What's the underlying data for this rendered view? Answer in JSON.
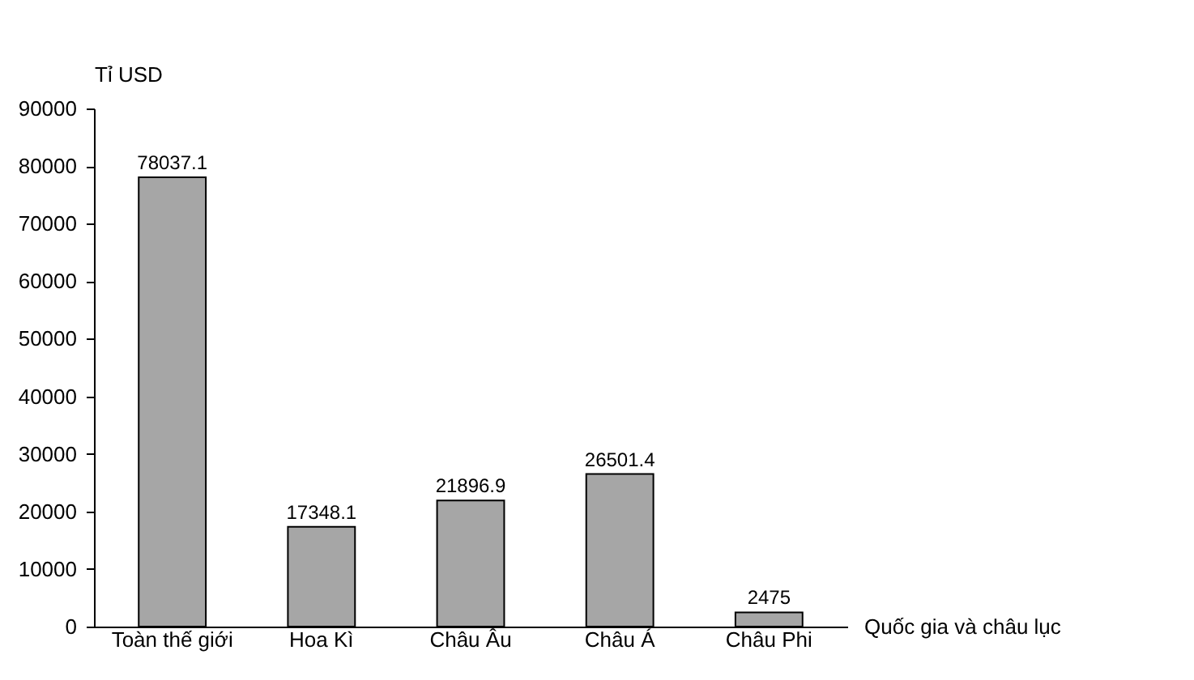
{
  "chart_data": {
    "type": "bar",
    "ylabel": "Tỉ USD",
    "xlabel": "Quốc gia và châu lục",
    "categories": [
      "Toàn thế giới",
      "Hoa Kì",
      "Châu Âu",
      "Châu Á",
      "Châu Phi"
    ],
    "values": [
      78037.1,
      17348.1,
      21896.9,
      26501.4,
      2475
    ],
    "color": "#a6a6a6",
    "data_labels": true,
    "ylim": [
      0,
      90000
    ],
    "yticks": [
      0,
      10000,
      20000,
      30000,
      40000,
      50000,
      60000,
      70000,
      80000,
      90000
    ],
    "grid": false,
    "legend": false
  }
}
